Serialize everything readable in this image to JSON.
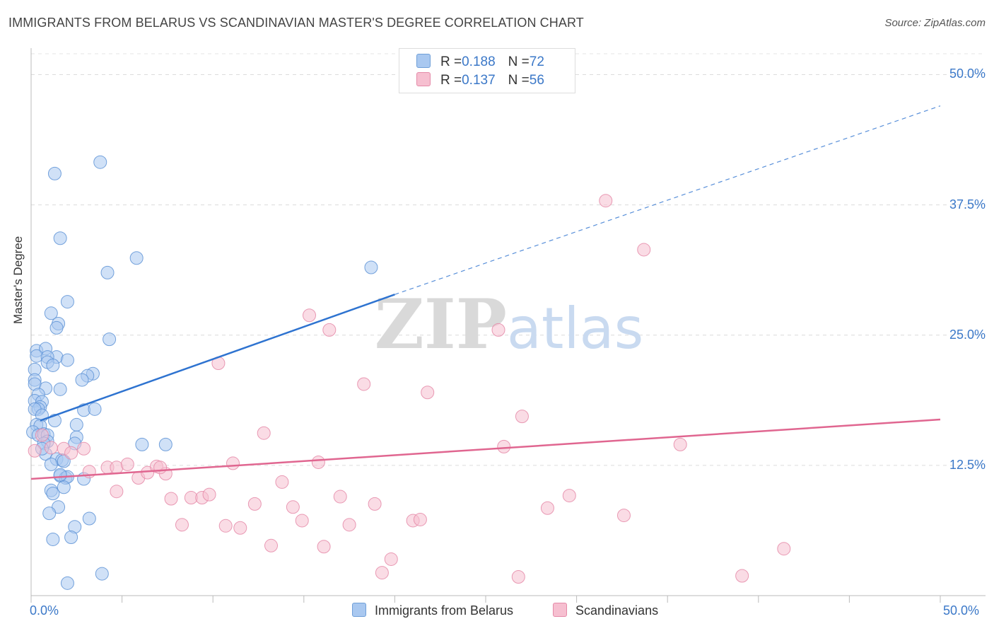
{
  "chart_data": {
    "type": "scatter",
    "title": "IMMIGRANTS FROM BELARUS VS SCANDINAVIAN MASTER'S DEGREE CORRELATION CHART",
    "source": "Source: ZipAtlas.com",
    "ylabel": "Master's Degree",
    "xlabel": "",
    "xlim": [
      0,
      50
    ],
    "ylim": [
      0,
      52
    ],
    "x_tick_labels": [
      "0.0%",
      "50.0%"
    ],
    "y_ticks": [
      12.5,
      25.0,
      37.5,
      50.0
    ],
    "y_tick_labels": [
      "12.5%",
      "25.0%",
      "37.5%",
      "50.0%"
    ],
    "grid": true,
    "watermark": "ZIPatlas",
    "legend": [
      {
        "r_label": "R = ",
        "r_value": "0.188",
        "n_label": "N = ",
        "n_value": "72",
        "color": "#a9c8f0",
        "stroke": "#6f9fd8"
      },
      {
        "r_label": "R = ",
        "r_value": "0.137",
        "n_label": "N = ",
        "n_value": "56",
        "color": "#f6bfd0",
        "stroke": "#e58aa8"
      }
    ],
    "series": [
      {
        "name": "Immigrants from Belarus",
        "color": "#a9c8f0",
        "stroke": "#5e93d6",
        "line_color": "#2e73d0",
        "trend": {
          "x0": 0.5,
          "y0": 16.8,
          "x1": 20.0,
          "y1": 28.9,
          "x_dash_end": 50.0,
          "y_dash_end": 47.0
        },
        "points": [
          [
            1.3,
            40.5
          ],
          [
            3.8,
            41.6
          ],
          [
            1.6,
            34.3
          ],
          [
            5.8,
            32.4
          ],
          [
            4.2,
            31.0
          ],
          [
            18.7,
            31.5
          ],
          [
            2.0,
            28.2
          ],
          [
            1.1,
            27.1
          ],
          [
            1.5,
            26.1
          ],
          [
            1.4,
            25.7
          ],
          [
            4.3,
            24.6
          ],
          [
            0.3,
            23.5
          ],
          [
            0.8,
            23.7
          ],
          [
            0.3,
            23.0
          ],
          [
            1.4,
            22.9
          ],
          [
            0.9,
            22.9
          ],
          [
            2.0,
            22.6
          ],
          [
            0.9,
            22.4
          ],
          [
            1.2,
            22.1
          ],
          [
            0.2,
            21.7
          ],
          [
            3.4,
            21.3
          ],
          [
            3.1,
            21.1
          ],
          [
            2.8,
            20.7
          ],
          [
            0.2,
            20.7
          ],
          [
            0.2,
            20.3
          ],
          [
            1.6,
            19.8
          ],
          [
            0.8,
            19.9
          ],
          [
            0.4,
            19.3
          ],
          [
            0.2,
            18.7
          ],
          [
            0.6,
            18.6
          ],
          [
            0.5,
            18.1
          ],
          [
            0.4,
            17.9
          ],
          [
            0.2,
            17.9
          ],
          [
            2.9,
            17.8
          ],
          [
            3.5,
            17.9
          ],
          [
            0.6,
            17.3
          ],
          [
            1.3,
            16.8
          ],
          [
            0.3,
            16.4
          ],
          [
            0.5,
            16.3
          ],
          [
            2.5,
            16.4
          ],
          [
            0.1,
            15.7
          ],
          [
            0.4,
            15.4
          ],
          [
            0.7,
            15.5
          ],
          [
            0.9,
            15.4
          ],
          [
            2.5,
            15.2
          ],
          [
            0.9,
            14.8
          ],
          [
            0.7,
            14.6
          ],
          [
            2.4,
            14.6
          ],
          [
            6.1,
            14.5
          ],
          [
            7.4,
            14.5
          ],
          [
            0.8,
            13.6
          ],
          [
            1.4,
            13.1
          ],
          [
            1.7,
            13.0
          ],
          [
            1.8,
            12.9
          ],
          [
            1.1,
            12.6
          ],
          [
            1.6,
            11.5
          ],
          [
            1.9,
            11.3
          ],
          [
            2.0,
            11.4
          ],
          [
            2.9,
            11.2
          ],
          [
            1.8,
            10.4
          ],
          [
            1.1,
            10.1
          ],
          [
            1.2,
            9.8
          ],
          [
            1.5,
            8.5
          ],
          [
            1.0,
            7.9
          ],
          [
            3.2,
            7.4
          ],
          [
            2.4,
            6.6
          ],
          [
            2.2,
            5.6
          ],
          [
            1.2,
            5.4
          ],
          [
            3.9,
            2.1
          ],
          [
            2.0,
            1.2
          ],
          [
            1.6,
            11.6
          ],
          [
            0.6,
            14.1
          ]
        ]
      },
      {
        "name": "Scandinavians",
        "color": "#f6bfd0",
        "stroke": "#e58aa8",
        "line_color": "#e06690",
        "trend": {
          "x0": 0.0,
          "y0": 11.2,
          "x1": 50.0,
          "y1": 16.9
        },
        "points": [
          [
            0.2,
            13.9
          ],
          [
            0.6,
            15.4
          ],
          [
            1.1,
            14.2
          ],
          [
            1.8,
            14.1
          ],
          [
            2.2,
            13.7
          ],
          [
            2.9,
            14.1
          ],
          [
            3.2,
            11.9
          ],
          [
            4.2,
            12.3
          ],
          [
            4.7,
            12.3
          ],
          [
            5.3,
            12.6
          ],
          [
            4.7,
            10.0
          ],
          [
            5.9,
            11.3
          ],
          [
            6.4,
            11.8
          ],
          [
            6.9,
            12.4
          ],
          [
            7.4,
            11.7
          ],
          [
            7.7,
            9.3
          ],
          [
            8.3,
            6.8
          ],
          [
            8.8,
            9.4
          ],
          [
            9.4,
            9.4
          ],
          [
            9.8,
            9.7
          ],
          [
            10.3,
            22.3
          ],
          [
            10.7,
            6.7
          ],
          [
            11.1,
            12.7
          ],
          [
            11.5,
            6.5
          ],
          [
            12.3,
            8.8
          ],
          [
            12.8,
            15.6
          ],
          [
            13.2,
            4.8
          ],
          [
            13.8,
            10.9
          ],
          [
            14.4,
            8.5
          ],
          [
            14.9,
            7.2
          ],
          [
            15.3,
            26.9
          ],
          [
            15.8,
            12.8
          ],
          [
            16.1,
            4.7
          ],
          [
            16.4,
            25.5
          ],
          [
            17.0,
            9.5
          ],
          [
            17.5,
            6.8
          ],
          [
            18.3,
            20.3
          ],
          [
            18.9,
            8.8
          ],
          [
            19.3,
            2.2
          ],
          [
            19.8,
            3.5
          ],
          [
            21.0,
            7.2
          ],
          [
            21.4,
            7.3
          ],
          [
            21.8,
            19.5
          ],
          [
            25.7,
            25.5
          ],
          [
            26.0,
            14.3
          ],
          [
            26.8,
            1.8
          ],
          [
            27.0,
            17.2
          ],
          [
            28.4,
            8.4
          ],
          [
            29.6,
            9.6
          ],
          [
            31.6,
            37.9
          ],
          [
            32.6,
            7.7
          ],
          [
            33.7,
            33.2
          ],
          [
            35.7,
            14.5
          ],
          [
            39.1,
            1.9
          ],
          [
            41.4,
            4.5
          ],
          [
            7.1,
            12.3
          ]
        ]
      }
    ]
  }
}
